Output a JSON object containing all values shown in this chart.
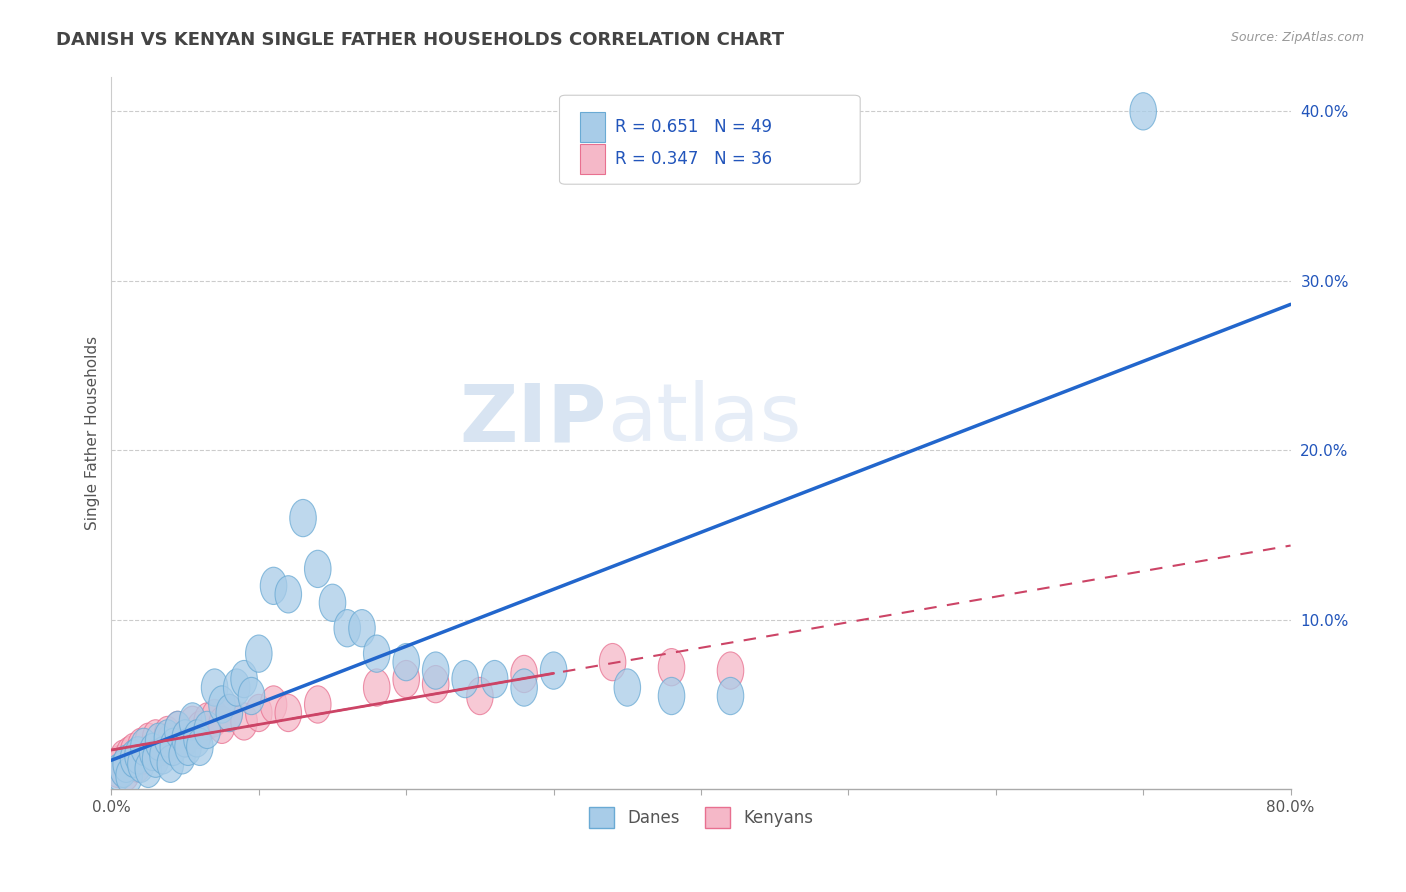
{
  "title": "DANISH VS KENYAN SINGLE FATHER HOUSEHOLDS CORRELATION CHART",
  "source_text": "Source: ZipAtlas.com",
  "ylabel": "Single Father Households",
  "xlim": [
    0.0,
    0.8
  ],
  "ylim": [
    0.0,
    0.42
  ],
  "xtick_pos": [
    0.0,
    0.1,
    0.2,
    0.3,
    0.4,
    0.5,
    0.6,
    0.7,
    0.8
  ],
  "xticklabels": [
    "0.0%",
    "",
    "",
    "",
    "",
    "",
    "",
    "",
    "80.0%"
  ],
  "ytick_positions": [
    0.1,
    0.2,
    0.3,
    0.4
  ],
  "ytick_labels": [
    "10.0%",
    "20.0%",
    "30.0%",
    "40.0%"
  ],
  "watermark_zip": "ZIP",
  "watermark_atlas": "atlas",
  "danes_color": "#a8cce8",
  "danes_edge_color": "#6aaad4",
  "kenyans_color": "#f5b8c8",
  "kenyans_edge_color": "#e87090",
  "line_danes_color": "#2266cc",
  "line_kenyans_color": "#cc4466",
  "R_danes": 0.651,
  "N_danes": 49,
  "R_kenyans": 0.347,
  "N_kenyans": 36,
  "legend_text_color": "#2255bb",
  "title_color": "#444444",
  "danes_x": [
    0.005,
    0.008,
    0.01,
    0.012,
    0.015,
    0.018,
    0.02,
    0.022,
    0.025,
    0.028,
    0.03,
    0.032,
    0.035,
    0.038,
    0.04,
    0.042,
    0.045,
    0.048,
    0.05,
    0.052,
    0.055,
    0.058,
    0.06,
    0.065,
    0.07,
    0.075,
    0.08,
    0.085,
    0.09,
    0.095,
    0.1,
    0.11,
    0.12,
    0.13,
    0.14,
    0.15,
    0.16,
    0.17,
    0.18,
    0.2,
    0.22,
    0.24,
    0.26,
    0.28,
    0.3,
    0.35,
    0.38,
    0.42,
    0.7
  ],
  "danes_y": [
    0.01,
    0.012,
    0.015,
    0.008,
    0.018,
    0.02,
    0.015,
    0.025,
    0.012,
    0.022,
    0.018,
    0.028,
    0.02,
    0.03,
    0.015,
    0.025,
    0.035,
    0.02,
    0.03,
    0.025,
    0.04,
    0.03,
    0.025,
    0.035,
    0.06,
    0.05,
    0.045,
    0.06,
    0.065,
    0.055,
    0.08,
    0.12,
    0.115,
    0.16,
    0.13,
    0.11,
    0.095,
    0.095,
    0.08,
    0.075,
    0.07,
    0.065,
    0.065,
    0.06,
    0.07,
    0.06,
    0.055,
    0.055,
    0.4
  ],
  "kenyans_x": [
    0.004,
    0.006,
    0.008,
    0.01,
    0.012,
    0.015,
    0.018,
    0.02,
    0.022,
    0.025,
    0.028,
    0.03,
    0.035,
    0.038,
    0.04,
    0.045,
    0.05,
    0.055,
    0.06,
    0.065,
    0.07,
    0.075,
    0.08,
    0.09,
    0.1,
    0.11,
    0.12,
    0.14,
    0.18,
    0.2,
    0.22,
    0.25,
    0.28,
    0.34,
    0.38,
    0.42
  ],
  "kenyans_y": [
    0.012,
    0.015,
    0.018,
    0.01,
    0.02,
    0.022,
    0.015,
    0.025,
    0.02,
    0.028,
    0.022,
    0.03,
    0.025,
    0.032,
    0.028,
    0.035,
    0.03,
    0.038,
    0.035,
    0.04,
    0.042,
    0.038,
    0.045,
    0.04,
    0.045,
    0.05,
    0.045,
    0.05,
    0.06,
    0.065,
    0.062,
    0.055,
    0.068,
    0.075,
    0.072,
    0.07
  ],
  "background_color": "#ffffff",
  "plot_bg_color": "#ffffff",
  "grid_color": "#cccccc"
}
